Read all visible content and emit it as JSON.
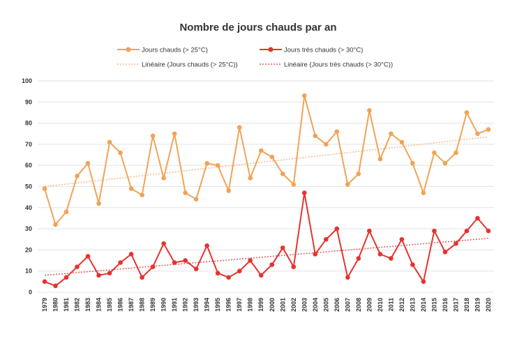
{
  "chart_data": {
    "type": "line",
    "title": "Nombre de jours chauds par an",
    "xlabel": "",
    "ylabel": "",
    "ylim": [
      0,
      100
    ],
    "yticks": [
      0,
      10,
      20,
      30,
      40,
      50,
      60,
      70,
      80,
      90,
      100
    ],
    "grid": true,
    "legend_position": "top",
    "x": [
      "1979",
      "1980",
      "1981",
      "1982",
      "1983",
      "1984",
      "1985",
      "1986",
      "1987",
      "1988",
      "1989",
      "1990",
      "1991",
      "1992",
      "1993",
      "1994",
      "1995",
      "1996",
      "1997",
      "1998",
      "1999",
      "2000",
      "2001",
      "2002",
      "2003",
      "2004",
      "2005",
      "2006",
      "2007",
      "2008",
      "2009",
      "2010",
      "2011",
      "2012",
      "2013",
      "2014",
      "2015",
      "2016",
      "2017",
      "2018",
      "2019",
      "2020"
    ],
    "series": [
      {
        "name": "Jours chauds (> 25°C)",
        "color": "#F0A356",
        "values": [
          49,
          32,
          38,
          55,
          61,
          42,
          71,
          66,
          49,
          46,
          74,
          54,
          75,
          47,
          44,
          61,
          60,
          48,
          78,
          54,
          67,
          64,
          56,
          51,
          93,
          74,
          70,
          76,
          51,
          56,
          86,
          63,
          75,
          71,
          61,
          47,
          66,
          61,
          66,
          85,
          75,
          77
        ]
      },
      {
        "name": "Jours très chauds (> 30°C)",
        "color": "#E8322E",
        "values": [
          5,
          3,
          7,
          12,
          17,
          8,
          9,
          14,
          18,
          7,
          12,
          23,
          14,
          15,
          11,
          22,
          9,
          7,
          10,
          15,
          8,
          13,
          21,
          12,
          47,
          18,
          25,
          30,
          7,
          16,
          29,
          18,
          16,
          25,
          13,
          5,
          29,
          19,
          23,
          29,
          35,
          29
        ]
      }
    ],
    "trendlines": [
      {
        "name": "Linéaire (Jours chauds (> 25°C))",
        "color": "#F5B98A",
        "start": 50,
        "end": 73.5
      },
      {
        "name": "Linéaire (Jours très chauds (> 30°C))",
        "color": "#E45A5A",
        "start": 8,
        "end": 25.5
      }
    ]
  }
}
